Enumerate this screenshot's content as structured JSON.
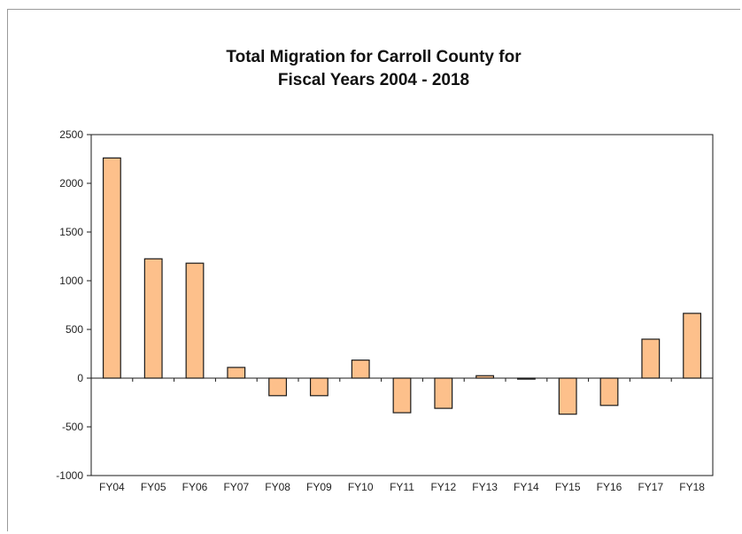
{
  "chart_data": {
    "type": "bar",
    "title": [
      "Total Migration for Carroll County for",
      "Fiscal Years 2004 - 2018"
    ],
    "categories": [
      "FY04",
      "FY05",
      "FY06",
      "FY07",
      "FY08",
      "FY09",
      "FY10",
      "FY11",
      "FY12",
      "FY13",
      "FY14",
      "FY15",
      "FY16",
      "FY17",
      "FY18"
    ],
    "values": [
      2260,
      1225,
      1180,
      110,
      -180,
      -180,
      185,
      -355,
      -310,
      25,
      -10,
      -370,
      -280,
      400,
      665
    ],
    "ylim": [
      -1000,
      2500
    ],
    "yticks": [
      2500,
      2000,
      1500,
      1000,
      500,
      0,
      -500,
      -1000
    ],
    "grid": false,
    "legend": "none",
    "colors": {
      "bar_fill": "#FDC08B",
      "bar_stroke": "#1a1a1a",
      "axis": "#1a1a1a"
    }
  }
}
